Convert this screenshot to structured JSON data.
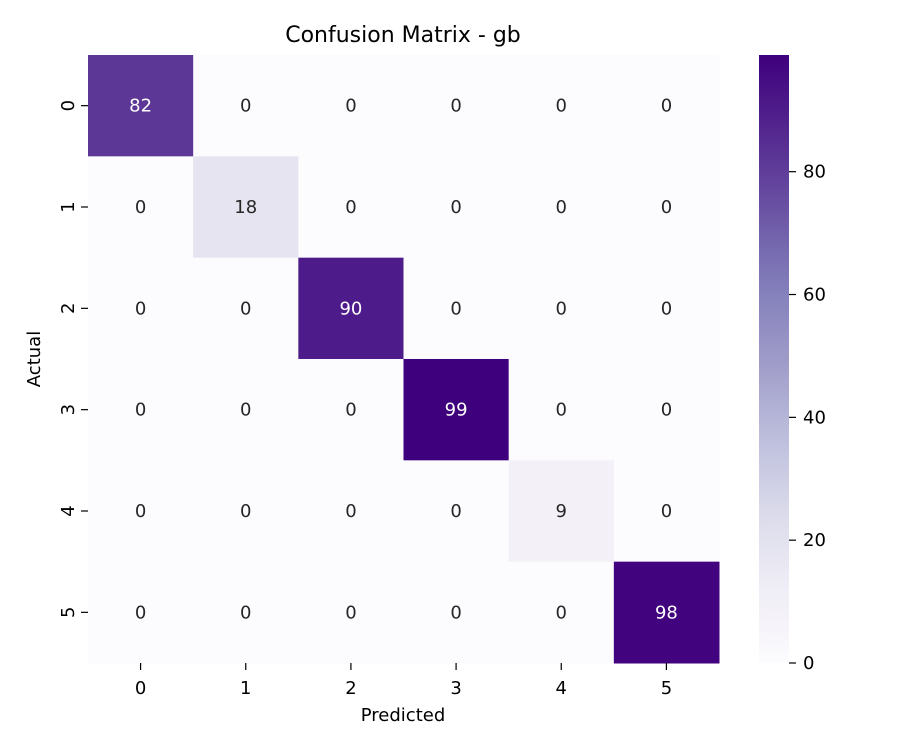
{
  "chart_data": {
    "type": "heatmap",
    "title": "Confusion Matrix - gb",
    "xlabel": "Predicted",
    "ylabel": "Actual",
    "x_categories": [
      "0",
      "1",
      "2",
      "3",
      "4",
      "5"
    ],
    "y_categories": [
      "0",
      "1",
      "2",
      "3",
      "4",
      "5"
    ],
    "values": [
      [
        82,
        0,
        0,
        0,
        0,
        0
      ],
      [
        0,
        18,
        0,
        0,
        0,
        0
      ],
      [
        0,
        0,
        90,
        0,
        0,
        0
      ],
      [
        0,
        0,
        0,
        99,
        0,
        0
      ],
      [
        0,
        0,
        0,
        0,
        9,
        0
      ],
      [
        0,
        0,
        0,
        0,
        0,
        98
      ]
    ],
    "colormap": "Purples",
    "color_low": "#fcfbfd",
    "color_high": "#3f007d",
    "colorbar_range": [
      0,
      99
    ],
    "colorbar_ticks": [
      "0",
      "20",
      "40",
      "60",
      "80"
    ],
    "grid": false
  }
}
